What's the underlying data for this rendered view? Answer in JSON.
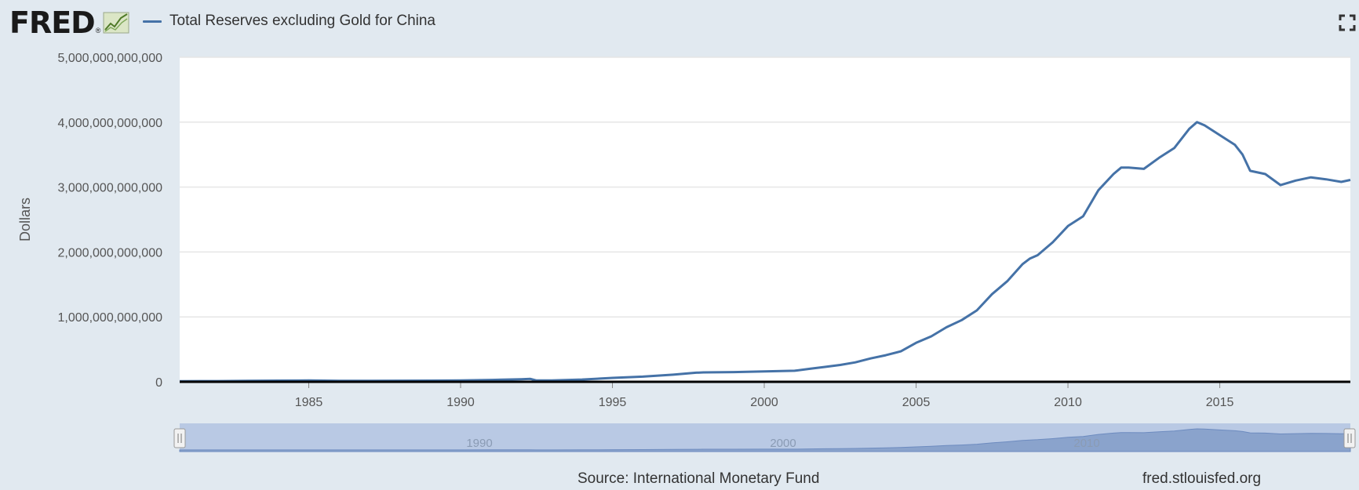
{
  "header": {
    "logo_text": "FRED",
    "logo_reg": "®",
    "legend_label": "Total Reserves excluding Gold for China"
  },
  "colors": {
    "series": "#4572a7",
    "background": "#e1e9f0",
    "plot_background": "#ffffff",
    "navigator_fill": "#b9c9e4"
  },
  "icons": {
    "logo": "fred-chart-icon",
    "fullscreen": "fullscreen-icon"
  },
  "chart_data": {
    "type": "line",
    "title": "Total Reserves excluding Gold for China",
    "xlabel": "",
    "ylabel": "Dollars",
    "xlim": [
      1980.75,
      2019.3
    ],
    "ylim": [
      0,
      5000000000000
    ],
    "y_ticks": [
      0,
      1000000000000,
      2000000000000,
      3000000000000,
      4000000000000,
      5000000000000
    ],
    "y_tick_labels": [
      "0",
      "1,000,000,000,000",
      "2,000,000,000,000",
      "3,000,000,000,000",
      "4,000,000,000,000",
      "5,000,000,000,000"
    ],
    "x_ticks": [
      1985,
      1990,
      1995,
      2000,
      2005,
      2010,
      2015
    ],
    "x_tick_labels": [
      "1985",
      "1990",
      "1995",
      "2000",
      "2005",
      "2010",
      "2015"
    ],
    "grid": true,
    "legend": "top-left",
    "navigator_labels": [
      "1990",
      "2000",
      "2010"
    ],
    "series": [
      {
        "name": "Total Reserves excluding Gold for China",
        "x": [
          1980.75,
          1982,
          1983,
          1984,
          1985,
          1986,
          1987,
          1988,
          1989,
          1990,
          1991,
          1992,
          1992.3,
          1992.5,
          1993,
          1994,
          1995,
          1996,
          1997,
          1997.75,
          1998,
          1999,
          2000,
          2001,
          2001.5,
          2002,
          2002.5,
          2003,
          2003.5,
          2004,
          2004.5,
          2005,
          2005.5,
          2006,
          2006.5,
          2007,
          2007.5,
          2008,
          2008.5,
          2008.75,
          2009,
          2009.5,
          2010,
          2010.5,
          2011,
          2011.5,
          2011.75,
          2012,
          2012.5,
          2013,
          2013.5,
          2014,
          2014.25,
          2014.5,
          2015,
          2015.5,
          2015.75,
          2016,
          2016.5,
          2017,
          2017.5,
          2018,
          2018.5,
          2019,
          2019.3
        ],
        "y": [
          10000000000,
          11000000000,
          15000000000,
          18000000000,
          20000000000,
          16000000000,
          14000000000,
          17000000000,
          18000000000,
          20000000000,
          29000000000,
          40000000000,
          45000000000,
          20000000000,
          22000000000,
          35000000000,
          60000000000,
          80000000000,
          110000000000,
          140000000000,
          145000000000,
          150000000000,
          160000000000,
          170000000000,
          200000000000,
          230000000000,
          260000000000,
          300000000000,
          360000000000,
          410000000000,
          470000000000,
          600000000000,
          700000000000,
          840000000000,
          950000000000,
          1100000000000,
          1350000000000,
          1550000000000,
          1810000000000,
          1900000000000,
          1950000000000,
          2150000000000,
          2400000000000,
          2550000000000,
          2950000000000,
          3200000000000,
          3300000000000,
          3300000000000,
          3280000000000,
          3450000000000,
          3600000000000,
          3900000000000,
          4000000000000,
          3950000000000,
          3800000000000,
          3650000000000,
          3500000000000,
          3250000000000,
          3200000000000,
          3030000000000,
          3100000000000,
          3150000000000,
          3120000000000,
          3080000000000,
          3110000000000
        ]
      }
    ]
  },
  "footer": {
    "source": "Source: International Monetary Fund",
    "url": "fred.stlouisfed.org"
  }
}
